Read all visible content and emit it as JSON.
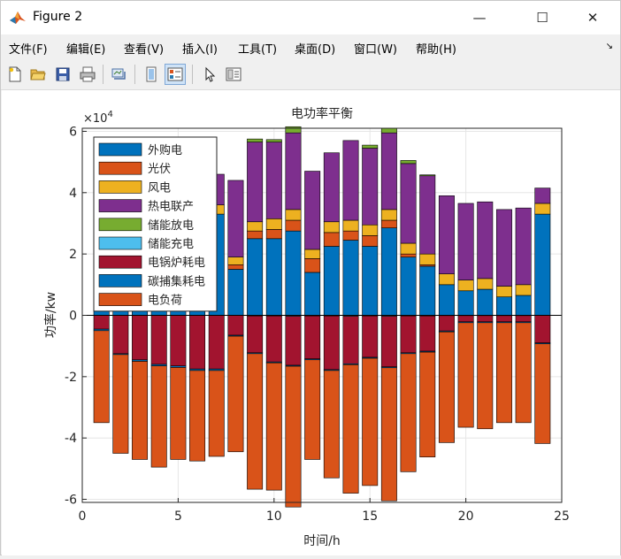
{
  "window": {
    "title": "Figure 2",
    "controls": {
      "minimize": "—",
      "maximize": "☐",
      "close": "✕"
    }
  },
  "menu": [
    {
      "label": "文件(F)"
    },
    {
      "label": "编辑(E)"
    },
    {
      "label": "查看(V)"
    },
    {
      "label": "插入(I)"
    },
    {
      "label": "工具(T)"
    },
    {
      "label": "桌面(D)"
    },
    {
      "label": "窗口(W)"
    },
    {
      "label": "帮助(H)"
    }
  ],
  "toolbar": [
    "new-figure-icon",
    "open-file-icon",
    "save-icon",
    "print-icon",
    "link-plot-icon",
    "hide-plot-tools-icon",
    "show-plot-tools-icon",
    "pointer-icon",
    "insert-colorbar-icon"
  ],
  "chart_data": {
    "type": "bar",
    "stacked": true,
    "title": "电功率平衡",
    "xlabel": "时间/h",
    "ylabel": "功率/kw",
    "y_exponent_label": "×10",
    "y_exponent_power": "4",
    "xlim": [
      0,
      25
    ],
    "ylim": [
      -61000,
      61000
    ],
    "xticks": [
      "0",
      "5",
      "10",
      "15",
      "20",
      "25"
    ],
    "yticks": [
      "-6",
      "-4",
      "-2",
      "0",
      "2",
      "4",
      "6"
    ],
    "grid": true,
    "legend_position": "top-left",
    "x": [
      1,
      2,
      3,
      4,
      5,
      6,
      7,
      8,
      9,
      10,
      11,
      12,
      13,
      14,
      15,
      16,
      17,
      18,
      19,
      20,
      21,
      22,
      23,
      24
    ],
    "series": [
      {
        "name": "外购电",
        "color": "#0072BD",
        "values": [
          19000,
          21000,
          22000,
          23000,
          24000,
          25000,
          33000,
          15000,
          25000,
          25000,
          27500,
          14000,
          22500,
          24500,
          22500,
          28500,
          19000,
          16000,
          10000,
          8000,
          8500,
          6000,
          6500,
          33000
        ]
      },
      {
        "name": "光伏",
        "color": "#D95319",
        "values": [
          0,
          0,
          0,
          0,
          0,
          0,
          0,
          1500,
          2500,
          3000,
          3500,
          4500,
          4500,
          3000,
          3500,
          2500,
          1000,
          500,
          0,
          0,
          0,
          0,
          0,
          0
        ]
      },
      {
        "name": "风电",
        "color": "#EDB120",
        "values": [
          2000,
          2000,
          2500,
          2500,
          2500,
          2500,
          3000,
          2500,
          3000,
          3500,
          3500,
          3000,
          3500,
          3500,
          3500,
          3500,
          3500,
          3500,
          3500,
          3500,
          3500,
          3500,
          3500,
          3500
        ]
      },
      {
        "name": "热电联产",
        "color": "#7E2F8E",
        "values": [
          14000,
          24000,
          23000,
          24000,
          20000,
          20000,
          10000,
          25000,
          26000,
          25000,
          25000,
          25500,
          22500,
          26000,
          25000,
          25000,
          26000,
          25500,
          25500,
          25000,
          25000,
          25000,
          25000,
          5000
        ]
      },
      {
        "name": "储能放电",
        "color": "#77AC30",
        "values": [
          0,
          0,
          0,
          0,
          0,
          0,
          0,
          0,
          1000,
          800,
          2000,
          0,
          0,
          0,
          1000,
          1500,
          1000,
          300,
          0,
          0,
          0,
          0,
          0,
          0
        ]
      },
      {
        "name": "储能充电",
        "color": "#4DBEEE",
        "values": [
          0,
          0,
          0,
          0,
          0,
          0,
          0,
          0,
          -200,
          -200,
          -300,
          -200,
          -200,
          -300,
          -200,
          -300,
          -200,
          -200,
          -100,
          -100,
          -100,
          -100,
          -100,
          0
        ]
      },
      {
        "name": "电锅炉耗电",
        "color": "#A2142F",
        "values": [
          -4500,
          -12500,
          -14500,
          -16000,
          -16500,
          -17500,
          -17500,
          -6500,
          -12000,
          -15000,
          -16000,
          -14000,
          -17500,
          -15500,
          -13500,
          -16500,
          -12000,
          -11500,
          -5000,
          -2000,
          -2000,
          -2000,
          -2000,
          -9000
        ]
      },
      {
        "name": "碳捕集耗电",
        "color": "#0072BD",
        "values": [
          -500,
          -300,
          -500,
          -500,
          -500,
          -500,
          -500,
          -300,
          -300,
          -300,
          -300,
          -300,
          -300,
          -300,
          -300,
          -300,
          -300,
          -300,
          -300,
          -300,
          -300,
          -300,
          -300,
          -300
        ]
      },
      {
        "name": "电负荷",
        "color": "#D95319",
        "values": [
          -30000,
          -32200,
          -32000,
          -33000,
          -30000,
          -29500,
          -28000,
          -37700,
          -44200,
          -41500,
          -45900,
          -32500,
          -35000,
          -41900,
          -41500,
          -43400,
          -38500,
          -34200,
          -36100,
          -34100,
          -34600,
          -32600,
          -32600,
          -32500
        ]
      }
    ]
  }
}
